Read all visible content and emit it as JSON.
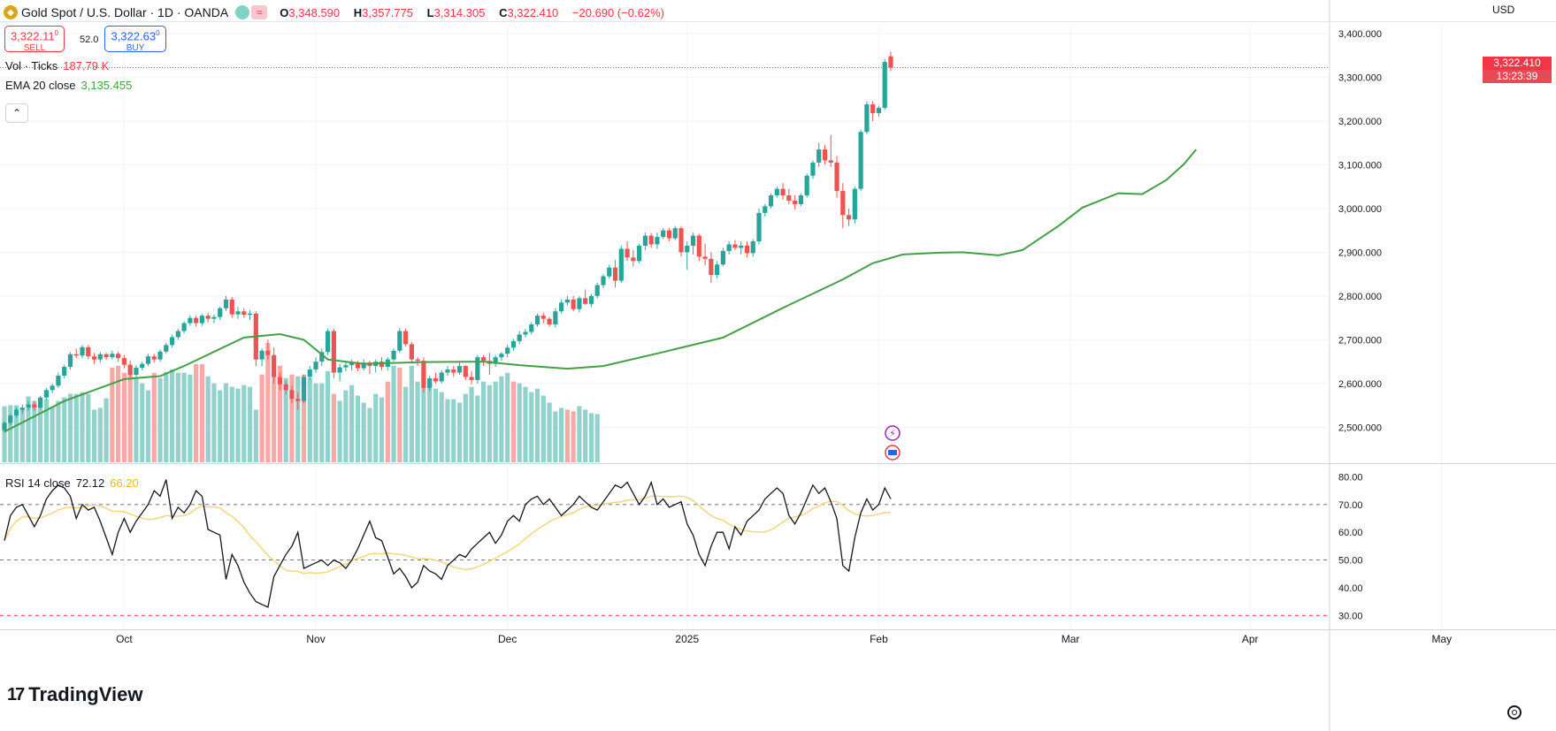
{
  "header": {
    "symbol_logo": "gold-logo-icon",
    "title": "Gold Spot / U.S. Dollar · 1D · OANDA",
    "ohlc": {
      "o_label": "O",
      "o": "3,348.590",
      "h_label": "H",
      "h": "3,357.775",
      "l_label": "L",
      "l": "3,314.305",
      "c_label": "C",
      "c": "3,322.410",
      "change": "−20.690 (−0.62%)"
    },
    "sell": {
      "price": "3,322.11",
      "sup": "0",
      "label": "SELL"
    },
    "buy": {
      "price": "3,322.63",
      "sup": "0",
      "label": "BUY"
    },
    "spread": "52.0"
  },
  "indicators": {
    "volume": {
      "label": "Vol · Ticks",
      "value": "187.79 K"
    },
    "ema": {
      "label": "EMA 20 close",
      "value": "3,135.455"
    },
    "rsi": {
      "label": "RSI 14 close",
      "value": "72.12",
      "ma_value": "66.20"
    }
  },
  "currency": "USD",
  "last_price_tag": {
    "price": "3,322.410",
    "countdown": "13:23:39"
  },
  "branding": "TradingView",
  "colors": {
    "up": "#26a69a",
    "down": "#ef5350",
    "ema": "#43a047",
    "rsi": "#131722",
    "rsi_ma": "#f5d77a",
    "vol_up": "#92d2cc",
    "vol_down": "#f7a9a7"
  },
  "chart_data": {
    "type": "candlestick",
    "title": "Gold Spot / U.S. Dollar · 1D · OANDA",
    "price_axis": {
      "range": [
        2420,
        3420
      ],
      "ticks": [
        "2,500.000",
        "2,600.000",
        "2,700.000",
        "2,800.000",
        "2,900.000",
        "3,000.000",
        "3,100.000",
        "3,200.000",
        "3,300.000",
        "3,400.000"
      ]
    },
    "rsi_axis": {
      "range": [
        25,
        83
      ],
      "ticks": [
        "30.00",
        "40.00",
        "50.00",
        "60.00",
        "70.00",
        "80.00"
      ],
      "overbought": 70,
      "oversold": 30,
      "mid": 50
    },
    "time_axis": [
      "Oct",
      "Nov",
      "Dec",
      "2025",
      "Feb",
      "Mar",
      "Apr",
      "May"
    ],
    "time_axis_bar_index": [
      20,
      52,
      84,
      114,
      146,
      178,
      208,
      240
    ],
    "ohlc": [
      [
        2493,
        2514,
        2488,
        2510
      ],
      [
        2510,
        2530,
        2505,
        2527
      ],
      [
        2527,
        2545,
        2522,
        2540
      ],
      [
        2540,
        2552,
        2532,
        2545
      ],
      [
        2545,
        2560,
        2538,
        2552
      ],
      [
        2552,
        2560,
        2538,
        2545
      ],
      [
        2545,
        2572,
        2542,
        2568
      ],
      [
        2568,
        2590,
        2562,
        2585
      ],
      [
        2585,
        2600,
        2578,
        2595
      ],
      [
        2595,
        2625,
        2590,
        2618
      ],
      [
        2618,
        2643,
        2612,
        2638
      ],
      [
        2638,
        2672,
        2632,
        2667
      ],
      [
        2667,
        2680,
        2658,
        2664
      ],
      [
        2664,
        2688,
        2658,
        2683
      ],
      [
        2683,
        2688,
        2656,
        2662
      ],
      [
        2662,
        2670,
        2645,
        2655
      ],
      [
        2655,
        2672,
        2648,
        2667
      ],
      [
        2667,
        2670,
        2654,
        2660
      ],
      [
        2660,
        2675,
        2655,
        2668
      ],
      [
        2668,
        2672,
        2650,
        2658
      ],
      [
        2658,
        2665,
        2635,
        2643
      ],
      [
        2643,
        2653,
        2615,
        2620
      ],
      [
        2620,
        2642,
        2613,
        2636
      ],
      [
        2636,
        2650,
        2630,
        2645
      ],
      [
        2645,
        2668,
        2640,
        2662
      ],
      [
        2662,
        2668,
        2648,
        2655
      ],
      [
        2655,
        2678,
        2650,
        2673
      ],
      [
        2673,
        2693,
        2668,
        2688
      ],
      [
        2688,
        2712,
        2682,
        2706
      ],
      [
        2706,
        2725,
        2700,
        2720
      ],
      [
        2720,
        2742,
        2715,
        2738
      ],
      [
        2738,
        2756,
        2732,
        2750
      ],
      [
        2750,
        2755,
        2730,
        2738
      ],
      [
        2738,
        2760,
        2732,
        2755
      ],
      [
        2755,
        2762,
        2740,
        2748
      ],
      [
        2748,
        2758,
        2738,
        2752
      ],
      [
        2752,
        2776,
        2745,
        2772
      ],
      [
        2772,
        2800,
        2766,
        2792
      ],
      [
        2792,
        2798,
        2750,
        2758
      ],
      [
        2758,
        2775,
        2748,
        2765
      ],
      [
        2765,
        2772,
        2750,
        2757
      ],
      [
        2757,
        2768,
        2745,
        2760
      ],
      [
        2760,
        2765,
        2640,
        2655
      ],
      [
        2655,
        2680,
        2640,
        2675
      ],
      [
        2675,
        2700,
        2655,
        2665
      ],
      [
        2665,
        2682,
        2600,
        2615
      ],
      [
        2615,
        2625,
        2585,
        2598
      ],
      [
        2598,
        2606,
        2575,
        2585
      ],
      [
        2585,
        2596,
        2555,
        2565
      ],
      [
        2565,
        2580,
        2540,
        2560
      ],
      [
        2560,
        2620,
        2555,
        2615
      ],
      [
        2615,
        2640,
        2608,
        2632
      ],
      [
        2632,
        2660,
        2625,
        2650
      ],
      [
        2650,
        2680,
        2640,
        2672
      ],
      [
        2672,
        2725,
        2665,
        2720
      ],
      [
        2720,
        2725,
        2612,
        2625
      ],
      [
        2625,
        2645,
        2605,
        2637
      ],
      [
        2637,
        2650,
        2628,
        2642
      ],
      [
        2642,
        2655,
        2630,
        2648
      ],
      [
        2648,
        2652,
        2628,
        2635
      ],
      [
        2635,
        2655,
        2630,
        2648
      ],
      [
        2648,
        2652,
        2622,
        2640
      ],
      [
        2640,
        2655,
        2625,
        2650
      ],
      [
        2650,
        2660,
        2630,
        2638
      ],
      [
        2638,
        2660,
        2630,
        2655
      ],
      [
        2655,
        2680,
        2650,
        2675
      ],
      [
        2675,
        2727,
        2670,
        2720
      ],
      [
        2720,
        2725,
        2685,
        2690
      ],
      [
        2690,
        2695,
        2650,
        2655
      ],
      [
        2655,
        2660,
        2640,
        2652
      ],
      [
        2652,
        2660,
        2580,
        2590
      ],
      [
        2590,
        2618,
        2583,
        2612
      ],
      [
        2612,
        2625,
        2600,
        2605
      ],
      [
        2605,
        2630,
        2600,
        2625
      ],
      [
        2625,
        2640,
        2618,
        2632
      ],
      [
        2632,
        2640,
        2615,
        2625
      ],
      [
        2625,
        2650,
        2620,
        2640
      ],
      [
        2640,
        2642,
        2608,
        2615
      ],
      [
        2615,
        2628,
        2598,
        2608
      ],
      [
        2608,
        2665,
        2600,
        2660
      ],
      [
        2660,
        2665,
        2640,
        2652
      ],
      [
        2652,
        2670,
        2620,
        2645
      ],
      [
        2645,
        2665,
        2638,
        2660
      ],
      [
        2660,
        2672,
        2652,
        2668
      ],
      [
        2668,
        2688,
        2660,
        2682
      ],
      [
        2682,
        2702,
        2675,
        2697
      ],
      [
        2697,
        2720,
        2690,
        2712
      ],
      [
        2712,
        2725,
        2705,
        2718
      ],
      [
        2718,
        2740,
        2712,
        2735
      ],
      [
        2735,
        2760,
        2730,
        2755
      ],
      [
        2755,
        2762,
        2738,
        2748
      ],
      [
        2748,
        2752,
        2730,
        2735
      ],
      [
        2735,
        2772,
        2728,
        2765
      ],
      [
        2765,
        2792,
        2760,
        2785
      ],
      [
        2785,
        2800,
        2778,
        2792
      ],
      [
        2792,
        2800,
        2765,
        2770
      ],
      [
        2770,
        2800,
        2763,
        2795
      ],
      [
        2795,
        2815,
        2780,
        2782
      ],
      [
        2782,
        2805,
        2775,
        2800
      ],
      [
        2800,
        2830,
        2795,
        2825
      ],
      [
        2825,
        2850,
        2818,
        2845
      ],
      [
        2845,
        2872,
        2840,
        2865
      ],
      [
        2865,
        2882,
        2820,
        2835
      ],
      [
        2835,
        2915,
        2830,
        2908
      ],
      [
        2908,
        2925,
        2880,
        2888
      ],
      [
        2888,
        2905,
        2868,
        2880
      ],
      [
        2880,
        2920,
        2875,
        2915
      ],
      [
        2915,
        2945,
        2905,
        2938
      ],
      [
        2938,
        2944,
        2910,
        2918
      ],
      [
        2918,
        2945,
        2908,
        2935
      ],
      [
        2935,
        2955,
        2930,
        2950
      ],
      [
        2950,
        2955,
        2925,
        2932
      ],
      [
        2932,
        2960,
        2928,
        2955
      ],
      [
        2955,
        2960,
        2890,
        2900
      ],
      [
        2900,
        2925,
        2860,
        2915
      ],
      [
        2915,
        2945,
        2895,
        2938
      ],
      [
        2938,
        2942,
        2880,
        2890
      ],
      [
        2890,
        2920,
        2870,
        2885
      ],
      [
        2885,
        2900,
        2830,
        2848
      ],
      [
        2848,
        2880,
        2840,
        2872
      ],
      [
        2872,
        2910,
        2868,
        2903
      ],
      [
        2903,
        2925,
        2895,
        2918
      ],
      [
        2918,
        2928,
        2905,
        2910
      ],
      [
        2910,
        2925,
        2895,
        2915
      ],
      [
        2915,
        2925,
        2888,
        2898
      ],
      [
        2898,
        2930,
        2890,
        2925
      ],
      [
        2925,
        3000,
        2918,
        2990
      ],
      [
        2990,
        3010,
        2982,
        3005
      ],
      [
        3005,
        3035,
        3000,
        3030
      ],
      [
        3030,
        3050,
        3025,
        3045
      ],
      [
        3045,
        3058,
        3020,
        3030
      ],
      [
        3030,
        3045,
        3010,
        3018
      ],
      [
        3018,
        3030,
        2998,
        3010
      ],
      [
        3010,
        3035,
        3005,
        3030
      ],
      [
        3030,
        3080,
        3025,
        3075
      ],
      [
        3075,
        3110,
        3068,
        3105
      ],
      [
        3105,
        3150,
        3095,
        3135
      ],
      [
        3135,
        3145,
        3100,
        3110
      ],
      [
        3110,
        3168,
        3095,
        3105
      ],
      [
        3105,
        3120,
        3025,
        3040
      ],
      [
        3040,
        3058,
        2955,
        2985
      ],
      [
        2985,
        3000,
        2960,
        2975
      ],
      [
        2975,
        3050,
        2965,
        3045
      ],
      [
        3045,
        3180,
        3040,
        3175
      ],
      [
        3175,
        3245,
        3170,
        3238
      ],
      [
        3238,
        3245,
        3200,
        3218
      ],
      [
        3218,
        3235,
        3210,
        3230
      ],
      [
        3230,
        3342,
        3225,
        3335
      ],
      [
        3348,
        3358,
        3314,
        3322
      ]
    ],
    "ema20": [
      [
        0,
        2490
      ],
      [
        10,
        2560
      ],
      [
        20,
        2610
      ],
      [
        26,
        2617
      ],
      [
        30,
        2640
      ],
      [
        40,
        2705
      ],
      [
        46,
        2713
      ],
      [
        50,
        2700
      ],
      [
        54,
        2655
      ],
      [
        60,
        2645
      ],
      [
        70,
        2649
      ],
      [
        80,
        2650
      ],
      [
        86,
        2642
      ],
      [
        94,
        2634
      ],
      [
        100,
        2640
      ],
      [
        110,
        2672
      ],
      [
        120,
        2705
      ],
      [
        130,
        2773
      ],
      [
        140,
        2838
      ],
      [
        145,
        2875
      ],
      [
        150,
        2895
      ],
      [
        156,
        2899
      ],
      [
        160,
        2900
      ],
      [
        166,
        2893
      ],
      [
        170,
        2905
      ],
      [
        176,
        2960
      ],
      [
        180,
        3002
      ],
      [
        186,
        3035
      ],
      [
        190,
        3033
      ],
      [
        194,
        3065
      ],
      [
        197,
        3102
      ],
      [
        199,
        3135
      ]
    ],
    "volume_k": [
      [
        64,
        "u"
      ],
      [
        65,
        "u"
      ],
      [
        65,
        "u"
      ],
      [
        62,
        "u"
      ],
      [
        75,
        "u"
      ],
      [
        70,
        "u"
      ],
      [
        72,
        "u"
      ],
      [
        72,
        "u"
      ],
      [
        63,
        "u"
      ],
      [
        70,
        "u"
      ],
      [
        74,
        "u"
      ],
      [
        78,
        "u"
      ],
      [
        78,
        "u"
      ],
      [
        80,
        "u"
      ],
      [
        78,
        "u"
      ],
      [
        60,
        "u"
      ],
      [
        62,
        "u"
      ],
      [
        73,
        "u"
      ],
      [
        108,
        "d"
      ],
      [
        110,
        "d"
      ],
      [
        102,
        "d"
      ],
      [
        100,
        "d"
      ],
      [
        96,
        "u"
      ],
      [
        90,
        "u"
      ],
      [
        82,
        "u"
      ],
      [
        102,
        "d"
      ],
      [
        96,
        "u"
      ],
      [
        103,
        "u"
      ],
      [
        106,
        "u"
      ],
      [
        102,
        "u"
      ],
      [
        102,
        "u"
      ],
      [
        100,
        "u"
      ],
      [
        112,
        "d"
      ],
      [
        112,
        "d"
      ],
      [
        98,
        "u"
      ],
      [
        90,
        "u"
      ],
      [
        82,
        "u"
      ],
      [
        90,
        "u"
      ],
      [
        86,
        "u"
      ],
      [
        84,
        "u"
      ],
      [
        88,
        "u"
      ],
      [
        86,
        "u"
      ],
      [
        60,
        "u"
      ],
      [
        100,
        "d"
      ],
      [
        136,
        "d"
      ],
      [
        100,
        "d"
      ],
      [
        110,
        "d"
      ],
      [
        96,
        "u"
      ],
      [
        100,
        "d"
      ],
      [
        98,
        "u"
      ],
      [
        100,
        "d"
      ],
      [
        96,
        "u"
      ],
      [
        90,
        "u"
      ],
      [
        90,
        "u"
      ],
      [
        104,
        "u"
      ],
      [
        78,
        "d"
      ],
      [
        70,
        "u"
      ],
      [
        82,
        "u"
      ],
      [
        88,
        "u"
      ],
      [
        76,
        "u"
      ],
      [
        68,
        "u"
      ],
      [
        62,
        "u"
      ],
      [
        78,
        "u"
      ],
      [
        74,
        "u"
      ],
      [
        92,
        "d"
      ],
      [
        110,
        "u"
      ],
      [
        108,
        "d"
      ],
      [
        86,
        "u"
      ],
      [
        110,
        "u"
      ],
      [
        92,
        "u"
      ],
      [
        86,
        "u"
      ],
      [
        90,
        "u"
      ],
      [
        84,
        "u"
      ],
      [
        80,
        "u"
      ],
      [
        72,
        "u"
      ],
      [
        72,
        "u"
      ],
      [
        68,
        "u"
      ],
      [
        78,
        "u"
      ],
      [
        86,
        "u"
      ],
      [
        76,
        "u"
      ],
      [
        92,
        "u"
      ],
      [
        88,
        "u"
      ],
      [
        92,
        "u"
      ],
      [
        98,
        "u"
      ],
      [
        102,
        "u"
      ],
      [
        92,
        "d"
      ],
      [
        90,
        "u"
      ],
      [
        86,
        "u"
      ],
      [
        80,
        "u"
      ],
      [
        84,
        "u"
      ],
      [
        76,
        "u"
      ],
      [
        68,
        "u"
      ],
      [
        58,
        "u"
      ],
      [
        62,
        "u"
      ],
      [
        60,
        "d"
      ],
      [
        58,
        "d"
      ],
      [
        64,
        "u"
      ],
      [
        60,
        "u"
      ],
      [
        56,
        "u"
      ],
      [
        55,
        "u"
      ]
    ],
    "rsi": [
      57,
      66,
      69,
      70,
      66,
      62,
      66,
      72,
      75,
      77,
      76,
      73,
      65,
      70,
      68,
      69,
      64,
      58,
      52,
      60,
      65,
      60,
      64,
      67,
      70,
      75,
      73,
      79,
      65,
      69,
      67,
      70,
      75,
      73,
      61,
      60,
      59,
      43,
      52,
      48,
      42,
      38,
      35,
      34,
      33,
      44,
      48,
      52,
      55,
      60,
      47,
      48,
      49,
      50,
      48,
      50,
      49,
      47,
      50,
      54,
      59,
      64,
      58,
      57,
      51,
      45,
      47,
      44,
      40,
      42,
      48,
      46,
      45,
      43,
      48,
      50,
      52,
      51,
      54,
      56,
      58,
      60,
      56,
      59,
      64,
      66,
      64,
      70,
      72,
      73,
      70,
      72,
      69,
      66,
      68,
      70,
      73,
      71,
      69,
      68,
      71,
      74,
      77,
      76,
      78,
      74,
      70,
      73,
      78,
      70,
      72,
      69,
      70,
      71,
      63,
      59,
      52,
      48,
      55,
      60,
      60,
      54,
      62,
      59,
      64,
      66,
      68,
      72,
      74,
      76,
      74,
      66,
      63,
      67,
      72,
      77,
      74,
      76,
      71,
      65,
      48,
      46,
      58,
      67,
      72,
      68,
      70,
      76,
      72
    ]
  }
}
